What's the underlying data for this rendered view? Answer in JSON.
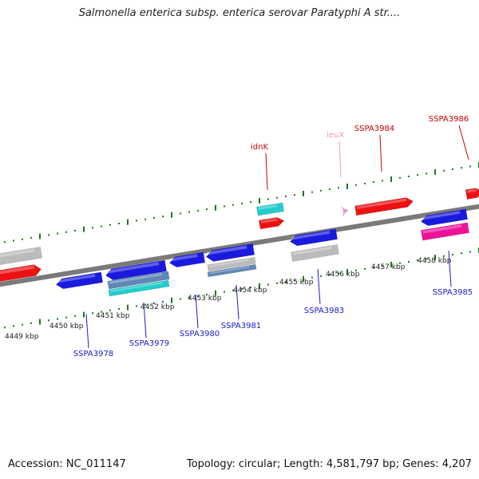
{
  "title": "Salmonella enterica subsp. enterica serovar Paratyphi A str....",
  "footer": {
    "accession": "Accession: NC_011147",
    "summary": "Topology: circular; Length: 4,581,797 bp; Genes: 4,207"
  },
  "colors": {
    "forward_cds": "#ee1111",
    "reverse_cds": "#1a1adf",
    "rna": "#ee99cc",
    "forward_label": "#cc0000",
    "reverse_label": "#1a1acc",
    "ruler_tick": "#1a7a1a",
    "backbone": "#7a7a7a",
    "cyan_feature": "#22cccc",
    "gray_feature": "#bbbbbb",
    "magenta_feature": "#ee1199",
    "steel_feature": "#5f87b8"
  },
  "ruler": {
    "unit": "kbp",
    "tick_labels": [
      "4449 kbp",
      "4450 kbp",
      "4451 kbp",
      "4452 kbp",
      "4453 kbp",
      "4454 kbp",
      "4455 kbp",
      "4456 kbp",
      "4457 kbp",
      "4458 kbp"
    ]
  },
  "gene_labels": {
    "forward": [
      "idnK",
      "leuX",
      "SSPA3984",
      "SSPA3986"
    ],
    "reverse": [
      "SSPA3978",
      "SSPA3979",
      "SSPA3980",
      "SSPA3981",
      "SSPA3983",
      "SSPA3985"
    ]
  }
}
